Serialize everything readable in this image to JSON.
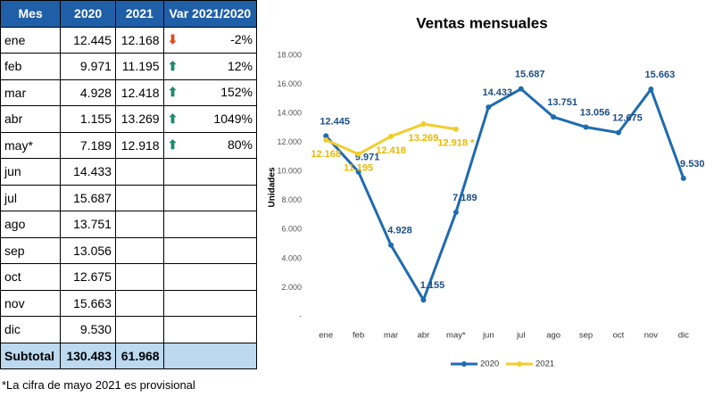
{
  "table": {
    "header": [
      "Mes",
      "2020",
      "2021",
      "Var 2021/2020"
    ],
    "rows": [
      [
        "ene",
        "12.445",
        "12.168",
        "-2%"
      ],
      [
        "feb",
        "9.971",
        "11.195",
        "12%"
      ],
      [
        "mar",
        "4.928",
        "12.418",
        "152%"
      ],
      [
        "abr",
        "1.155",
        "13.269",
        "1049%"
      ],
      [
        "may*",
        "7.189",
        "12.918",
        "80%"
      ],
      [
        "jun",
        "14.433",
        "",
        ""
      ],
      [
        "jul",
        "15.687",
        "",
        ""
      ],
      [
        "ago",
        "13.751",
        "",
        ""
      ],
      [
        "sep",
        "13.056",
        "",
        ""
      ],
      [
        "oct",
        "12.675",
        "",
        ""
      ],
      [
        "nov",
        "15.663",
        "",
        ""
      ],
      [
        "dic",
        "9.530",
        "",
        ""
      ]
    ],
    "subtotal": [
      "Subtotal",
      "130.483",
      "61.968"
    ],
    "note": "*La cifra de mayo 2021 es provisional"
  },
  "chart_data": {
    "type": "line",
    "title": "Ventas mensuales",
    "y_label": "Unidades",
    "categories": [
      "ene",
      "feb",
      "mar",
      "abr",
      "may*",
      "jun",
      "jul",
      "ago",
      "sep",
      "oct",
      "nov",
      "dic"
    ],
    "series": [
      {
        "name": "2020",
        "color": "#1f6bb0",
        "values": [
          12445,
          9971,
          4928,
          1155,
          7189,
          14433,
          15687,
          13751,
          13056,
          12675,
          15663,
          9530
        ],
        "value_labels": [
          "12.445",
          "9.971",
          "4.928",
          "1.155",
          "7.189",
          "14.433",
          "15.687",
          "13.751",
          "13.056",
          "12.675",
          "15.663",
          "9.530"
        ]
      },
      {
        "name": "2021",
        "color": "#f2cd2c",
        "values": [
          12168,
          11195,
          12418,
          13269,
          12918,
          null,
          null,
          null,
          null,
          null,
          null,
          null
        ],
        "value_labels": [
          "12.168",
          "11.195",
          "12.418",
          "13.269",
          "12.918 *",
          null,
          null,
          null,
          null,
          null,
          null,
          null
        ]
      }
    ],
    "ylim": [
      0,
      18000
    ],
    "yticks": [
      {
        "value": 0,
        "label": "-"
      },
      {
        "value": 2000,
        "label": "2.000"
      },
      {
        "value": 4000,
        "label": "4.000"
      },
      {
        "value": 6000,
        "label": "6.000"
      },
      {
        "value": 8000,
        "label": "8.000"
      },
      {
        "value": 10000,
        "label": "10.000"
      },
      {
        "value": 12000,
        "label": "12.000"
      },
      {
        "value": 14000,
        "label": "14.000"
      },
      {
        "value": 16000,
        "label": "16.000"
      },
      {
        "value": 18000,
        "label": "18.000"
      }
    ],
    "grid": false,
    "legend": "bottom"
  }
}
